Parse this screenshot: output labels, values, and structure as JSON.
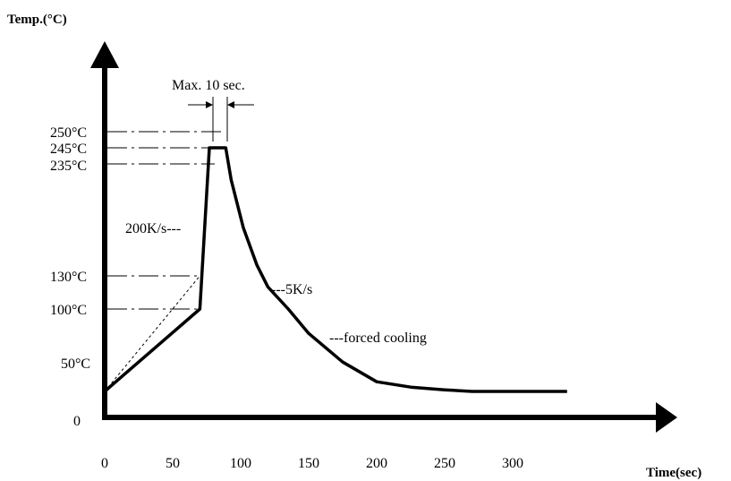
{
  "chart_data": {
    "type": "line",
    "xlabel": "Time(sec)",
    "ylabel": "Temp.(°C)",
    "x_ticks": [
      "0",
      "50",
      "100",
      "150",
      "200",
      "250",
      "300"
    ],
    "y_ticks": [
      {
        "value": 0,
        "label": "0"
      },
      {
        "value": 50,
        "label": "50°C"
      },
      {
        "value": 100,
        "label": "100°C"
      },
      {
        "value": 130,
        "label": "130°C"
      },
      {
        "value": 235,
        "label": "235°C"
      },
      {
        "value": 245,
        "label": "245°C"
      },
      {
        "value": 250,
        "label": "250°C"
      }
    ],
    "xlim": [
      0,
      340
    ],
    "ylim": [
      0,
      270
    ],
    "series": [
      {
        "style": "solid-thick",
        "points": [
          [
            0,
            30
          ],
          [
            70,
            100
          ],
          [
            77,
            245
          ],
          [
            89,
            245
          ],
          [
            93,
            220
          ],
          [
            102,
            175
          ],
          [
            112,
            140
          ],
          [
            120,
            120
          ],
          [
            135,
            100
          ],
          [
            150,
            83
          ],
          [
            175,
            63
          ],
          [
            200,
            48
          ],
          [
            225,
            38
          ],
          [
            250,
            33
          ],
          [
            270,
            30
          ],
          [
            340,
            30
          ]
        ]
      },
      {
        "style": "dashed-thin",
        "points": [
          [
            0,
            30
          ],
          [
            70,
            130
          ]
        ]
      }
    ],
    "reference_lines": [
      100,
      130,
      235,
      245,
      250
    ],
    "annotations": {
      "max_time": "Max. 10 sec.",
      "heating_rate": "200K/s---",
      "cooling_rate": "---5K/s",
      "forced_cooling": "---forced cooling"
    }
  }
}
